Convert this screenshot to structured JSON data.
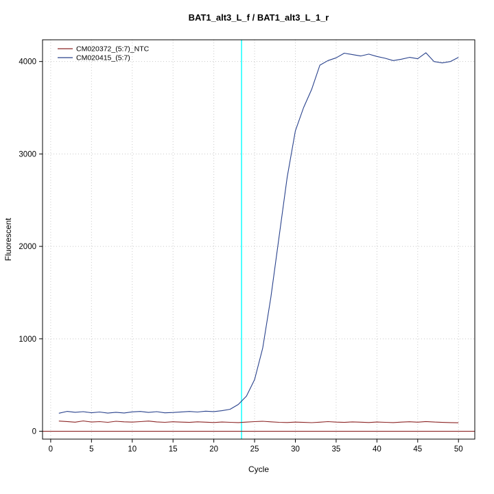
{
  "chart_data": {
    "type": "line",
    "title": "BAT1_alt3_L_f / BAT1_alt3_L_1_r",
    "xlabel": "Cycle",
    "ylabel": "Fluorescent",
    "x_ticks": [
      0,
      5,
      10,
      15,
      20,
      25,
      30,
      35,
      40,
      45,
      50
    ],
    "y_ticks": [
      0,
      1000,
      2000,
      3000,
      4000
    ],
    "xlim": [
      -1,
      52
    ],
    "ylim": [
      -85,
      4235
    ],
    "grid": true,
    "legend_position": "top-left",
    "grid_color": "#c8c8c8",
    "ct_line": {
      "x": 23.4,
      "color": "#00ffff"
    },
    "threshold_line": {
      "y": 0,
      "color": "#8b2323"
    },
    "x": [
      1,
      2,
      3,
      4,
      5,
      6,
      7,
      8,
      9,
      10,
      11,
      12,
      13,
      14,
      15,
      16,
      17,
      18,
      19,
      20,
      21,
      22,
      23,
      24,
      25,
      26,
      27,
      28,
      29,
      30,
      31,
      32,
      33,
      34,
      35,
      36,
      37,
      38,
      39,
      40,
      41,
      42,
      43,
      44,
      45,
      46,
      47,
      48,
      49,
      50
    ],
    "series": [
      {
        "name": "CM020372_(5:7)_NTC",
        "color": "#8b2323",
        "values": [
          110,
          105,
          98,
          112,
          100,
          104,
          97,
          108,
          102,
          99,
          104,
          110,
          101,
          97,
          103,
          99,
          96,
          102,
          98,
          95,
          100,
          97,
          94,
          99,
          104,
          108,
          102,
          97,
          95,
          99,
          96,
          93,
          98,
          104,
          99,
          96,
          101,
          98,
          95,
          100,
          97,
          94,
          99,
          103,
          98,
          105,
          100,
          96,
          94,
          92
        ]
      },
      {
        "name": "CM020415_(5:7)",
        "color": "#27408b",
        "values": [
          195,
          215,
          205,
          212,
          200,
          208,
          196,
          205,
          198,
          210,
          214,
          204,
          212,
          199,
          203,
          209,
          214,
          208,
          217,
          213,
          222,
          238,
          290,
          380,
          560,
          900,
          1450,
          2100,
          2750,
          3250,
          3500,
          3700,
          3960,
          4010,
          4040,
          4090,
          4075,
          4060,
          4080,
          4055,
          4035,
          4010,
          4025,
          4045,
          4030,
          4095,
          4000,
          3985,
          4000,
          4045
        ]
      }
    ]
  }
}
